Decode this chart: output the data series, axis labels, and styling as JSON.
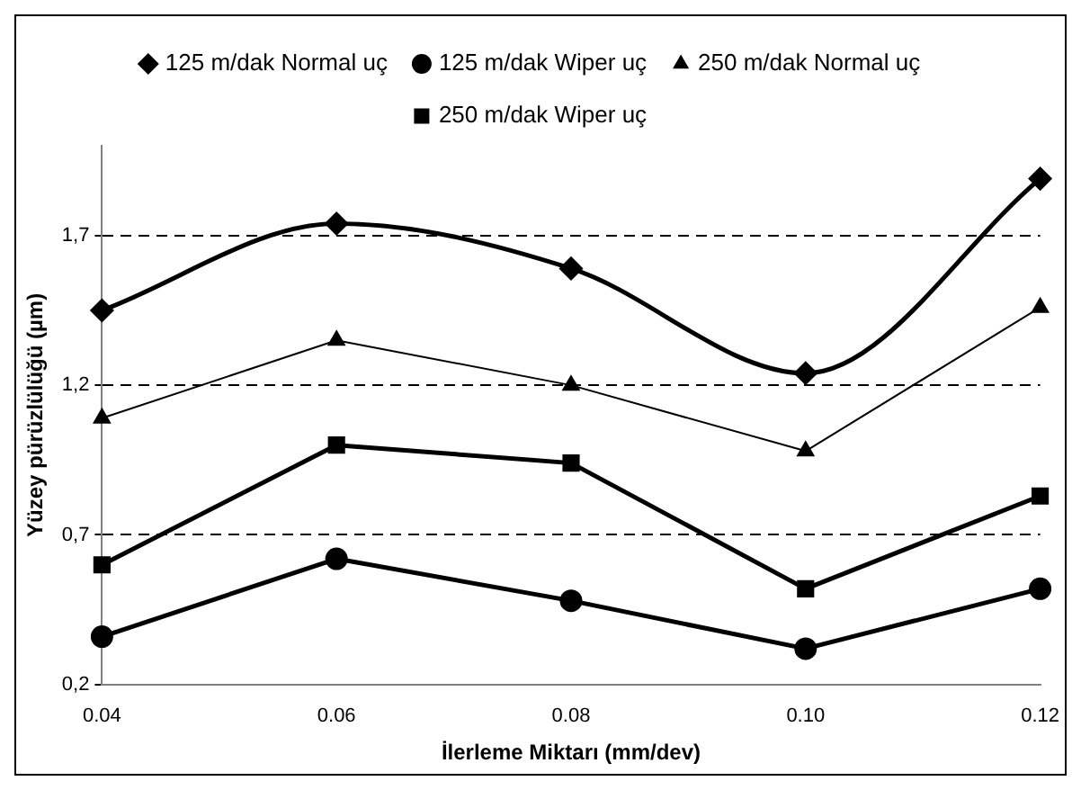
{
  "chart_data": {
    "type": "line",
    "xlabel": "İlerleme Miktarı (mm/dev)",
    "ylabel": "Yüzey pürüzlülüğü (µm)",
    "categories": [
      "0.04",
      "0.06",
      "0.08",
      "0.10",
      "0.12"
    ],
    "series": [
      {
        "name": "125 m/dak Normal uç",
        "color": "#000000",
        "marker": "diamond",
        "values": [
          1.45,
          1.74,
          1.59,
          1.24,
          1.89
        ]
      },
      {
        "name": "125 m/dak Wiper uç",
        "color": "#000000",
        "marker": "circle",
        "values": [
          0.36,
          0.62,
          0.48,
          0.32,
          0.52
        ]
      },
      {
        "name": "250 m/dak Normal uç",
        "color": "#000000",
        "marker": "triangle",
        "values": [
          1.09,
          1.35,
          1.2,
          0.98,
          1.46
        ]
      },
      {
        "name": "250 m/dak Wiper uç",
        "color": "#000000",
        "marker": "square",
        "values": [
          0.6,
          1.0,
          0.94,
          0.52,
          0.83
        ]
      }
    ],
    "ylim": [
      0.2,
      2.0
    ],
    "yticks": [
      {
        "value": 0.2,
        "label": "0,2"
      },
      {
        "value": 0.7,
        "label": "0,7"
      },
      {
        "value": 1.2,
        "label": "1,2"
      },
      {
        "value": 1.7,
        "label": "1,7"
      }
    ],
    "grid": "y",
    "legend": "top",
    "line_style": "solid"
  }
}
